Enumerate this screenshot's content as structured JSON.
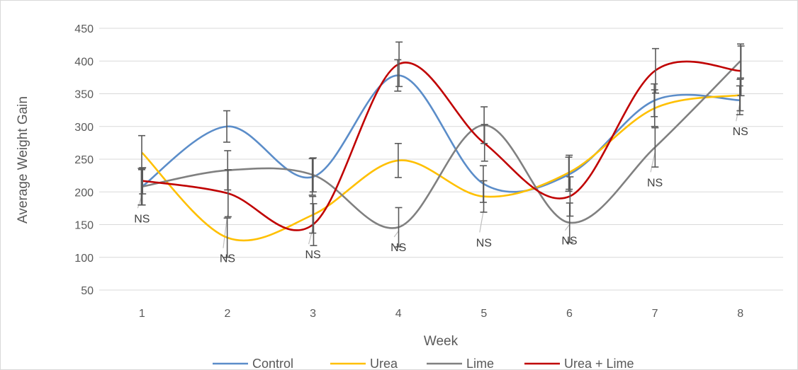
{
  "chart_data": {
    "type": "line",
    "smooth": true,
    "title": "",
    "xlabel": "Week",
    "ylabel": "Average Weight Gain",
    "categories": [
      "1",
      "2",
      "3",
      "4",
      "5",
      "6",
      "7",
      "8"
    ],
    "yticks": [
      50,
      100,
      150,
      200,
      250,
      300,
      350,
      400,
      450
    ],
    "ylim": [
      50,
      450
    ],
    "grid": "horizontal",
    "legend_position": "bottom",
    "series": [
      {
        "name": "Control",
        "color": "#5B8DC9",
        "values": [
          208,
          300,
          223,
          378,
          212,
          227,
          340,
          340
        ],
        "error": [
          28,
          24,
          28,
          24,
          28,
          26,
          25,
          22
        ]
      },
      {
        "name": "Urea",
        "color": "#FFC000",
        "values": [
          260,
          130,
          165,
          248,
          193,
          230,
          328,
          348
        ],
        "error": [
          26,
          30,
          28,
          26,
          24,
          26,
          28,
          24
        ]
      },
      {
        "name": "Lime",
        "color": "#808080",
        "values": [
          208,
          233,
          226,
          146,
          302,
          153,
          268,
          400
        ],
        "error": [
          28,
          30,
          26,
          30,
          28,
          30,
          30,
          26
        ]
      },
      {
        "name": "Urea + Lime",
        "color": "#C00000",
        "values": [
          217,
          198,
          150,
          395,
          275,
          193,
          385,
          385
        ],
        "error": [
          20,
          36,
          32,
          34,
          28,
          30,
          34,
          38
        ]
      }
    ],
    "annotations": [
      {
        "text": "NS",
        "week": "1",
        "y": 160,
        "leader_from": 195
      },
      {
        "text": "NS",
        "week": "2",
        "y": 99,
        "leader_from": 165
      },
      {
        "text": "NS",
        "week": "3",
        "y": 105,
        "leader_from": 145
      },
      {
        "text": "NS",
        "week": "4",
        "y": 116,
        "leader_from": 140
      },
      {
        "text": "NS",
        "week": "5",
        "y": 123,
        "leader_from": 175
      },
      {
        "text": "NS",
        "week": "6",
        "y": 126,
        "leader_from": 150
      },
      {
        "text": "NS",
        "week": "7",
        "y": 215,
        "leader_from": 260
      },
      {
        "text": "NS",
        "week": "8",
        "y": 293,
        "leader_from": 340
      }
    ]
  }
}
